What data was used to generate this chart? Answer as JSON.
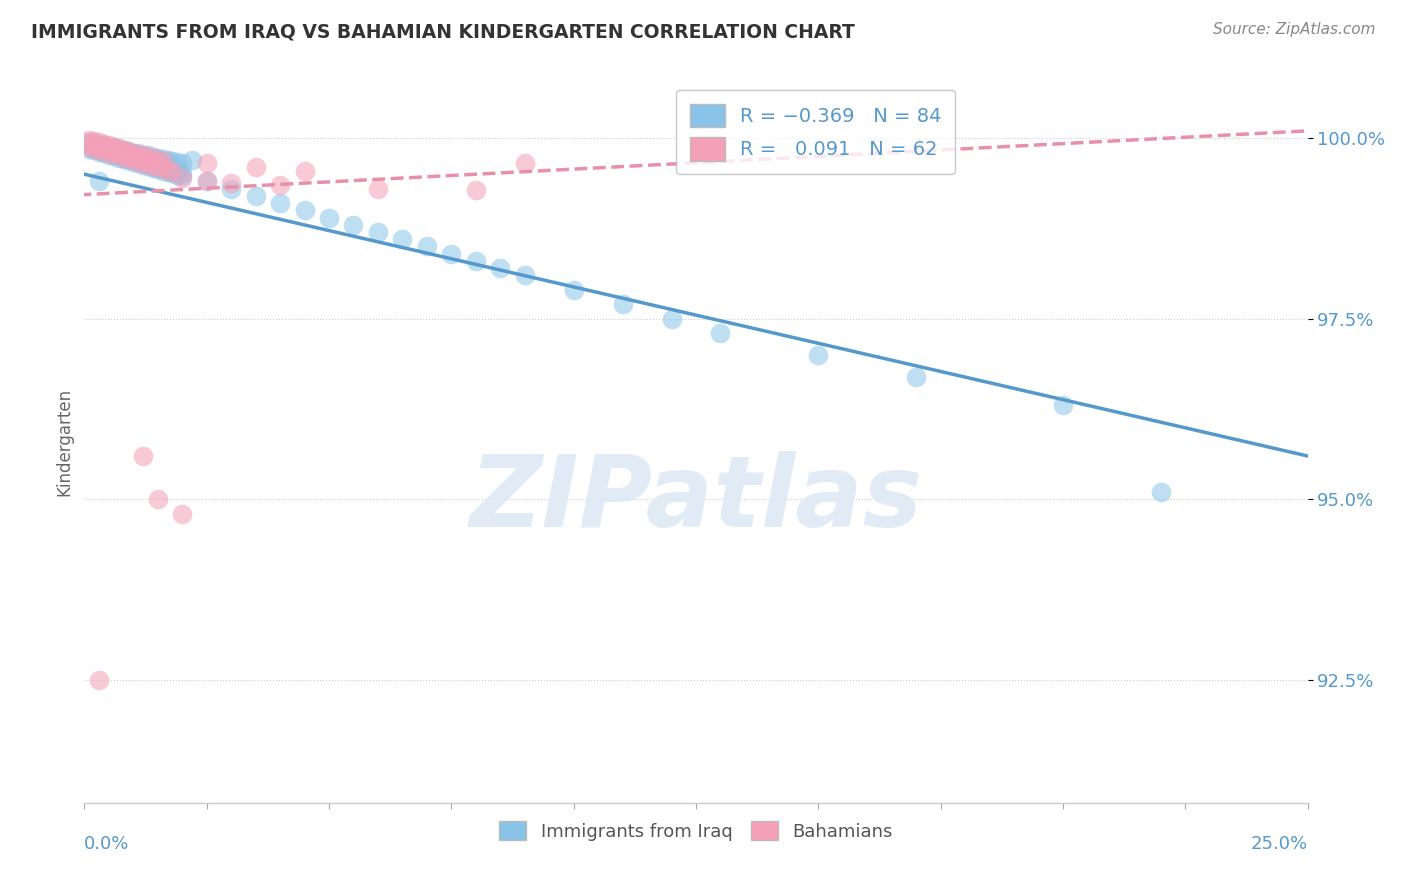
{
  "title": "IMMIGRANTS FROM IRAQ VS BAHAMIAN KINDERGARTEN CORRELATION CHART",
  "source": "Source: ZipAtlas.com",
  "ylabel": "Kindergarten",
  "ytick_labels": [
    "92.5%",
    "95.0%",
    "97.5%",
    "100.0%"
  ],
  "ytick_values": [
    0.925,
    0.95,
    0.975,
    1.0
  ],
  "xmin": 0.0,
  "xmax": 0.25,
  "ymin": 0.908,
  "ymax": 1.008,
  "watermark": "ZIPatlas",
  "blue_color": "#89C4E8",
  "pink_color": "#F4A0B8",
  "trend_blue": "#5599CC",
  "trend_pink": "#E890A8",
  "blue_scatter": [
    [
      0.001,
      0.9995
    ],
    [
      0.002,
      0.9993
    ],
    [
      0.003,
      0.9991
    ],
    [
      0.004,
      0.999
    ],
    [
      0.005,
      0.9988
    ],
    [
      0.006,
      0.9987
    ],
    [
      0.007,
      0.9985
    ],
    [
      0.008,
      0.9983
    ],
    [
      0.009,
      0.9982
    ],
    [
      0.01,
      0.998
    ],
    [
      0.011,
      0.9979
    ],
    [
      0.012,
      0.9977
    ],
    [
      0.013,
      0.9976
    ],
    [
      0.014,
      0.9974
    ],
    [
      0.015,
      0.9973
    ],
    [
      0.016,
      0.9971
    ],
    [
      0.017,
      0.997
    ],
    [
      0.018,
      0.9968
    ],
    [
      0.019,
      0.9967
    ],
    [
      0.02,
      0.9965
    ],
    [
      0.001,
      0.999
    ],
    [
      0.002,
      0.9988
    ],
    [
      0.003,
      0.9986
    ],
    [
      0.004,
      0.9984
    ],
    [
      0.005,
      0.9982
    ],
    [
      0.006,
      0.998
    ],
    [
      0.007,
      0.9978
    ],
    [
      0.008,
      0.9976
    ],
    [
      0.009,
      0.9974
    ],
    [
      0.01,
      0.9972
    ],
    [
      0.011,
      0.997
    ],
    [
      0.012,
      0.9968
    ],
    [
      0.013,
      0.9966
    ],
    [
      0.014,
      0.9964
    ],
    [
      0.015,
      0.9962
    ],
    [
      0.016,
      0.996
    ],
    [
      0.017,
      0.9958
    ],
    [
      0.018,
      0.9956
    ],
    [
      0.019,
      0.9954
    ],
    [
      0.02,
      0.9952
    ],
    [
      0.001,
      0.9985
    ],
    [
      0.002,
      0.9983
    ],
    [
      0.003,
      0.9981
    ],
    [
      0.004,
      0.9979
    ],
    [
      0.005,
      0.9977
    ],
    [
      0.006,
      0.9975
    ],
    [
      0.007,
      0.9973
    ],
    [
      0.008,
      0.9971
    ],
    [
      0.009,
      0.9969
    ],
    [
      0.01,
      0.9967
    ],
    [
      0.011,
      0.9965
    ],
    [
      0.012,
      0.9963
    ],
    [
      0.013,
      0.9961
    ],
    [
      0.014,
      0.9959
    ],
    [
      0.015,
      0.9957
    ],
    [
      0.016,
      0.9955
    ],
    [
      0.017,
      0.9953
    ],
    [
      0.018,
      0.9951
    ],
    [
      0.019,
      0.9949
    ],
    [
      0.02,
      0.9947
    ],
    [
      0.025,
      0.994
    ],
    [
      0.03,
      0.993
    ],
    [
      0.035,
      0.992
    ],
    [
      0.04,
      0.991
    ],
    [
      0.05,
      0.989
    ],
    [
      0.055,
      0.988
    ],
    [
      0.06,
      0.987
    ],
    [
      0.065,
      0.986
    ],
    [
      0.07,
      0.985
    ],
    [
      0.08,
      0.983
    ],
    [
      0.085,
      0.982
    ],
    [
      0.09,
      0.981
    ],
    [
      0.1,
      0.979
    ],
    [
      0.11,
      0.977
    ],
    [
      0.12,
      0.975
    ],
    [
      0.13,
      0.973
    ],
    [
      0.15,
      0.97
    ],
    [
      0.17,
      0.967
    ],
    [
      0.2,
      0.963
    ],
    [
      0.045,
      0.99
    ],
    [
      0.075,
      0.984
    ],
    [
      0.22,
      0.951
    ],
    [
      0.003,
      0.994
    ],
    [
      0.022,
      0.997
    ]
  ],
  "pink_scatter": [
    [
      0.001,
      0.9998
    ],
    [
      0.002,
      0.9996
    ],
    [
      0.003,
      0.9994
    ],
    [
      0.004,
      0.9992
    ],
    [
      0.005,
      0.999
    ],
    [
      0.006,
      0.9988
    ],
    [
      0.007,
      0.9986
    ],
    [
      0.008,
      0.9984
    ],
    [
      0.009,
      0.9982
    ],
    [
      0.01,
      0.998
    ],
    [
      0.011,
      0.9978
    ],
    [
      0.012,
      0.9976
    ],
    [
      0.013,
      0.9974
    ],
    [
      0.014,
      0.9972
    ],
    [
      0.015,
      0.997
    ],
    [
      0.016,
      0.9968
    ],
    [
      0.001,
      0.9993
    ],
    [
      0.002,
      0.9991
    ],
    [
      0.003,
      0.9989
    ],
    [
      0.004,
      0.9987
    ],
    [
      0.005,
      0.9985
    ],
    [
      0.006,
      0.9983
    ],
    [
      0.007,
      0.9981
    ],
    [
      0.008,
      0.9979
    ],
    [
      0.009,
      0.9977
    ],
    [
      0.01,
      0.9975
    ],
    [
      0.011,
      0.9973
    ],
    [
      0.012,
      0.9971
    ],
    [
      0.001,
      0.9988
    ],
    [
      0.002,
      0.9986
    ],
    [
      0.003,
      0.9984
    ],
    [
      0.004,
      0.9982
    ],
    [
      0.005,
      0.998
    ],
    [
      0.006,
      0.9978
    ],
    [
      0.007,
      0.9976
    ],
    [
      0.008,
      0.9974
    ],
    [
      0.009,
      0.9972
    ],
    [
      0.01,
      0.997
    ],
    [
      0.011,
      0.9968
    ],
    [
      0.012,
      0.9966
    ],
    [
      0.013,
      0.9964
    ],
    [
      0.014,
      0.9962
    ],
    [
      0.015,
      0.996
    ],
    [
      0.016,
      0.9958
    ],
    [
      0.017,
      0.9956
    ],
    [
      0.018,
      0.9954
    ],
    [
      0.02,
      0.9945
    ],
    [
      0.025,
      0.994
    ],
    [
      0.03,
      0.9938
    ],
    [
      0.04,
      0.9935
    ],
    [
      0.06,
      0.993
    ],
    [
      0.08,
      0.9928
    ],
    [
      0.09,
      0.9965
    ],
    [
      0.025,
      0.9965
    ],
    [
      0.035,
      0.996
    ],
    [
      0.045,
      0.9955
    ],
    [
      0.015,
      0.95
    ],
    [
      0.012,
      0.956
    ],
    [
      0.02,
      0.948
    ],
    [
      0.003,
      0.925
    ]
  ],
  "blue_trend_x": [
    0.0,
    0.25
  ],
  "blue_trend_y": [
    0.995,
    0.956
  ],
  "pink_trend_x": [
    -0.005,
    0.25
  ],
  "pink_trend_y": [
    0.992,
    1.001
  ]
}
